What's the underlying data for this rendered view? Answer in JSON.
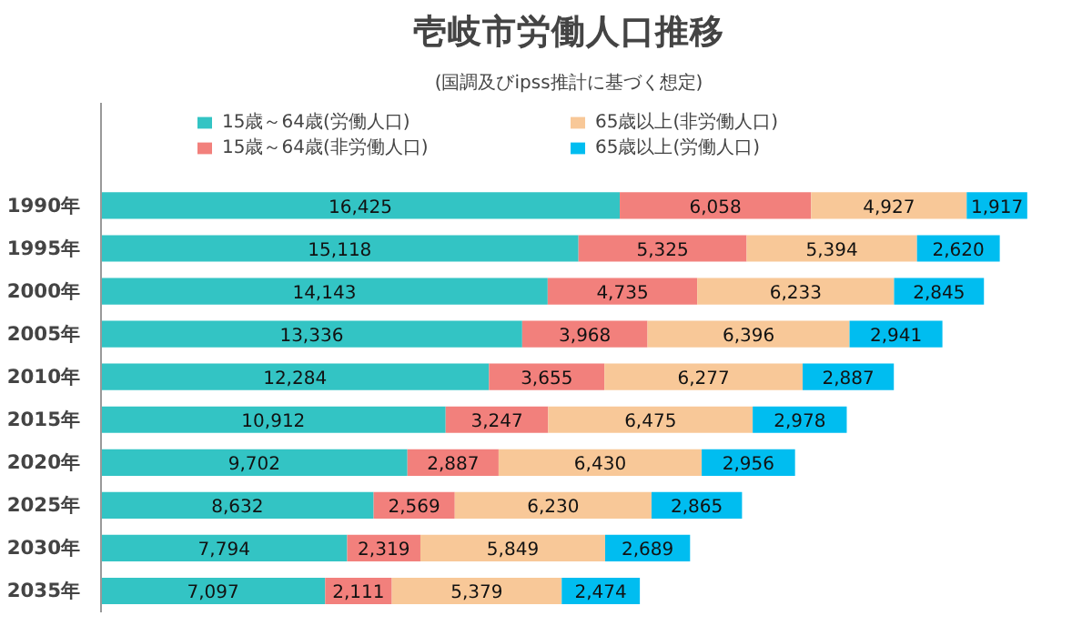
{
  "chart_data": {
    "type": "bar",
    "orientation": "horizontal",
    "stacked": true,
    "grid": false,
    "legend": "top",
    "title": "壱岐市労働人口推移",
    "subtitle": "(国調及びipss推計に基づく想定)",
    "categories": [
      "1990年",
      "1995年",
      "2000年",
      "2005年",
      "2010年",
      "2015年",
      "2020年",
      "2025年",
      "2030年",
      "2035年"
    ],
    "series": [
      {
        "name": "15歳～64歳(労働人口)",
        "color": "#33c4c4",
        "values": [
          16425,
          15118,
          14143,
          13336,
          12284,
          10912,
          9702,
          8632,
          7794,
          7097
        ],
        "value_labels": [
          "16,425",
          "15,118",
          "14,143",
          "13,336",
          "12,284",
          "10,912",
          "9,702",
          "8,632",
          "7,794",
          "7,097"
        ]
      },
      {
        "name": "15歳～64歳(非労働人口)",
        "color": "#f2807c",
        "values": [
          6058,
          5325,
          4735,
          3968,
          3655,
          3247,
          2887,
          2569,
          2319,
          2111
        ],
        "value_labels": [
          "6,058",
          "5,325",
          "4,735",
          "3,968",
          "3,655",
          "3,247",
          "2,887",
          "2,569",
          "2,319",
          "2,111"
        ]
      },
      {
        "name": "65歳以上(非労働人口)",
        "color": "#f8c898",
        "values": [
          4927,
          5394,
          6233,
          6396,
          6277,
          6475,
          6430,
          6230,
          5849,
          5379
        ],
        "value_labels": [
          "4,927",
          "5,394",
          "6,233",
          "6,396",
          "6,277",
          "6,475",
          "6,430",
          "6,230",
          "5,849",
          "5,379"
        ]
      },
      {
        "name": "65歳以上(労働人口)",
        "color": "#00bdf0",
        "values": [
          1917,
          2620,
          2845,
          2941,
          2887,
          2978,
          2956,
          2865,
          2689,
          2474
        ],
        "value_labels": [
          "1,917",
          "2,620",
          "2,845",
          "2,941",
          "2,887",
          "2,978",
          "2,956",
          "2,865",
          "2,689",
          "2,474"
        ]
      }
    ]
  }
}
